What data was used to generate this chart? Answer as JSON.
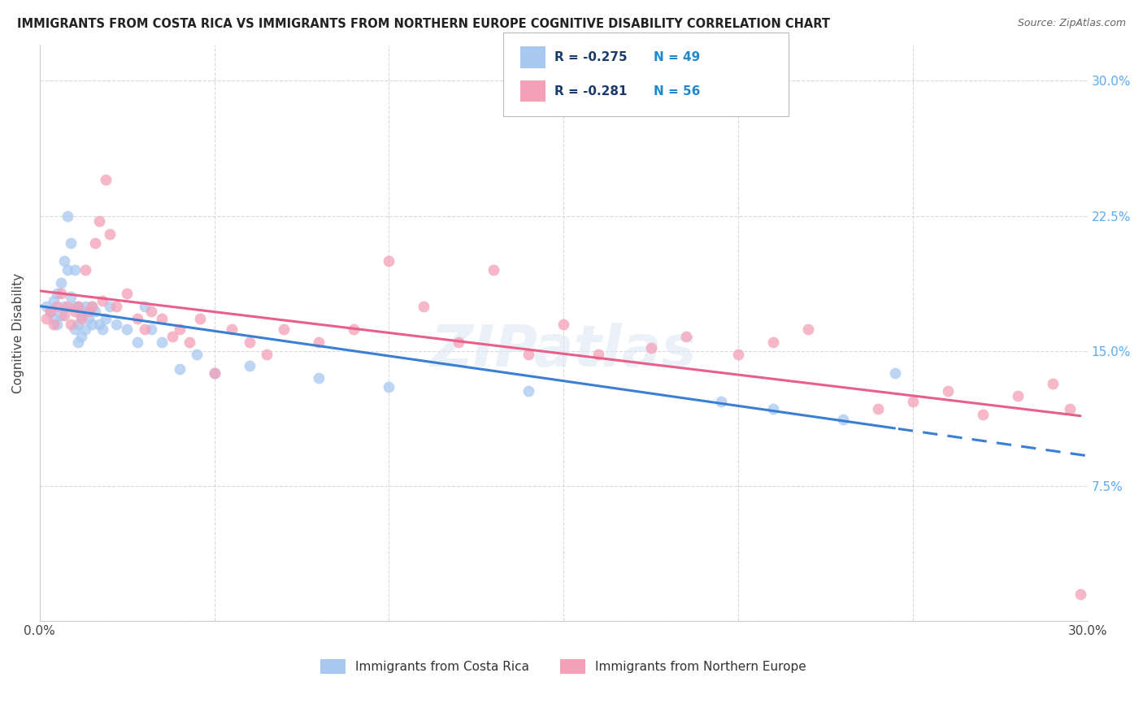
{
  "title": "IMMIGRANTS FROM COSTA RICA VS IMMIGRANTS FROM NORTHERN EUROPE COGNITIVE DISABILITY CORRELATION CHART",
  "source": "Source: ZipAtlas.com",
  "ylabel": "Cognitive Disability",
  "xlim": [
    0.0,
    0.3
  ],
  "ylim": [
    0.0,
    0.32
  ],
  "series1_color": "#a8c8f0",
  "series2_color": "#f4a0b8",
  "line1_color": "#3a7fd4",
  "line2_color": "#e8608a",
  "series1_label": "Immigrants from Costa Rica",
  "series2_label": "Immigrants from Northern Europe",
  "r1": -0.275,
  "n1": 49,
  "r2": -0.281,
  "n2": 56,
  "right_axis_color": "#5aacf0",
  "watermark": "ZIPatlas",
  "series1_x": [
    0.002,
    0.003,
    0.004,
    0.004,
    0.005,
    0.005,
    0.006,
    0.006,
    0.007,
    0.007,
    0.008,
    0.008,
    0.009,
    0.009,
    0.01,
    0.01,
    0.01,
    0.011,
    0.011,
    0.011,
    0.012,
    0.012,
    0.013,
    0.013,
    0.014,
    0.015,
    0.015,
    0.016,
    0.017,
    0.018,
    0.019,
    0.02,
    0.022,
    0.025,
    0.028,
    0.03,
    0.032,
    0.035,
    0.04,
    0.045,
    0.05,
    0.06,
    0.08,
    0.1,
    0.14,
    0.195,
    0.21,
    0.23,
    0.245
  ],
  "series1_y": [
    0.175,
    0.172,
    0.178,
    0.168,
    0.182,
    0.165,
    0.188,
    0.17,
    0.2,
    0.175,
    0.225,
    0.195,
    0.21,
    0.18,
    0.195,
    0.175,
    0.162,
    0.175,
    0.165,
    0.155,
    0.17,
    0.158,
    0.175,
    0.162,
    0.168,
    0.175,
    0.165,
    0.172,
    0.165,
    0.162,
    0.168,
    0.175,
    0.165,
    0.162,
    0.155,
    0.175,
    0.162,
    0.155,
    0.14,
    0.148,
    0.138,
    0.142,
    0.135,
    0.13,
    0.128,
    0.122,
    0.118,
    0.112,
    0.138
  ],
  "series2_x": [
    0.002,
    0.003,
    0.004,
    0.005,
    0.006,
    0.007,
    0.008,
    0.009,
    0.01,
    0.011,
    0.012,
    0.013,
    0.014,
    0.015,
    0.016,
    0.017,
    0.018,
    0.019,
    0.02,
    0.022,
    0.025,
    0.028,
    0.03,
    0.032,
    0.035,
    0.038,
    0.04,
    0.043,
    0.046,
    0.05,
    0.055,
    0.06,
    0.065,
    0.07,
    0.08,
    0.09,
    0.1,
    0.11,
    0.12,
    0.13,
    0.14,
    0.15,
    0.16,
    0.175,
    0.185,
    0.2,
    0.21,
    0.22,
    0.24,
    0.25,
    0.26,
    0.27,
    0.28,
    0.29,
    0.295,
    0.298
  ],
  "series2_y": [
    0.168,
    0.172,
    0.165,
    0.175,
    0.182,
    0.17,
    0.175,
    0.165,
    0.172,
    0.175,
    0.168,
    0.195,
    0.172,
    0.175,
    0.21,
    0.222,
    0.178,
    0.245,
    0.215,
    0.175,
    0.182,
    0.168,
    0.162,
    0.172,
    0.168,
    0.158,
    0.162,
    0.155,
    0.168,
    0.138,
    0.162,
    0.155,
    0.148,
    0.162,
    0.155,
    0.162,
    0.2,
    0.175,
    0.155,
    0.195,
    0.148,
    0.165,
    0.148,
    0.152,
    0.158,
    0.148,
    0.155,
    0.162,
    0.118,
    0.122,
    0.128,
    0.115,
    0.125,
    0.132,
    0.118,
    0.015
  ]
}
